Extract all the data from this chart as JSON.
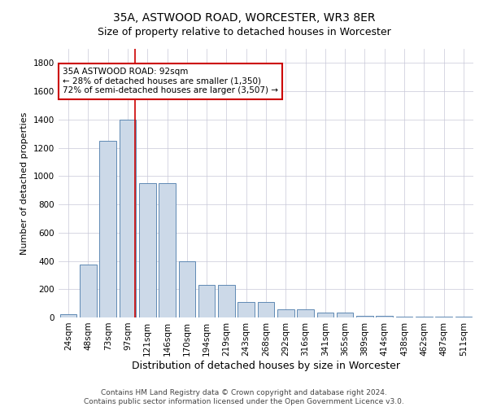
{
  "title1": "35A, ASTWOOD ROAD, WORCESTER, WR3 8ER",
  "title2": "Size of property relative to detached houses in Worcester",
  "xlabel": "Distribution of detached houses by size in Worcester",
  "ylabel": "Number of detached properties",
  "categories": [
    "24sqm",
    "48sqm",
    "73sqm",
    "97sqm",
    "121sqm",
    "146sqm",
    "170sqm",
    "194sqm",
    "219sqm",
    "243sqm",
    "268sqm",
    "292sqm",
    "316sqm",
    "341sqm",
    "365sqm",
    "389sqm",
    "414sqm",
    "438sqm",
    "462sqm",
    "487sqm",
    "511sqm"
  ],
  "values": [
    25,
    375,
    1250,
    1400,
    950,
    950,
    400,
    230,
    230,
    110,
    110,
    60,
    60,
    35,
    35,
    12,
    12,
    8,
    8,
    4,
    4
  ],
  "bar_color": "#ccd9e8",
  "bar_edge_color": "#4a7aaa",
  "red_line_x": 3.35,
  "annotation_text": "35A ASTWOOD ROAD: 92sqm\n← 28% of detached houses are smaller (1,350)\n72% of semi-detached houses are larger (3,507) →",
  "annotation_box_color": "#ffffff",
  "annotation_box_edge_color": "#cc0000",
  "footer1": "Contains HM Land Registry data © Crown copyright and database right 2024.",
  "footer2": "Contains public sector information licensed under the Open Government Licence v3.0.",
  "ylim": [
    0,
    1900
  ],
  "yticks": [
    0,
    200,
    400,
    600,
    800,
    1000,
    1200,
    1400,
    1600,
    1800
  ],
  "background_color": "#ffffff",
  "grid_color": "#c8c8d8",
  "title1_fontsize": 10,
  "title2_fontsize": 9,
  "ylabel_fontsize": 8,
  "xlabel_fontsize": 9,
  "tick_fontsize": 7.5,
  "ann_fontsize": 7.5,
  "footer_fontsize": 6.5
}
